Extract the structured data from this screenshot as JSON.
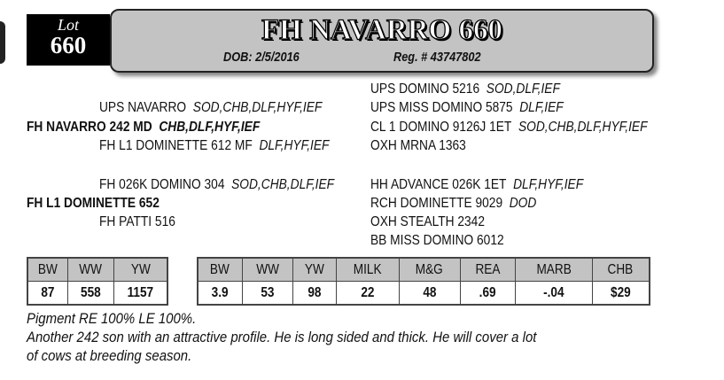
{
  "header": {
    "lot_word": "Lot",
    "lot_number": "660",
    "name": "FH NAVARRO 660",
    "dob": "DOB: 2/5/2016",
    "reg": "Reg. # 43747802"
  },
  "pedigree": {
    "sire": {
      "name": "FH NAVARRO 242 MD",
      "tags": "CHB,DLF,HYF,IEF"
    },
    "sire_sire": {
      "name": "UPS NAVARRO",
      "tags": "SOD,CHB,DLF,HYF,IEF"
    },
    "sire_dam": {
      "name": "FH L1 DOMINETTE 612 MF",
      "tags": "DLF,HYF,IEF"
    },
    "ss_sire": {
      "name": "UPS DOMINO 5216",
      "tags": "SOD,DLF,IEF"
    },
    "ss_dam": {
      "name": "UPS MISS DOMINO 5875",
      "tags": "DLF,IEF"
    },
    "sd_sire": {
      "name": "CL 1 DOMINO 9126J 1ET",
      "tags": "SOD,CHB,DLF,HYF,IEF"
    },
    "sd_dam": {
      "name": "OXH MRNA 1363",
      "tags": ""
    },
    "dam": {
      "name": "FH L1 DOMINETTE 652",
      "tags": ""
    },
    "dam_sire": {
      "name": "FH 026K DOMINO 304",
      "tags": "SOD,CHB,DLF,IEF"
    },
    "dam_dam": {
      "name": "FH PATTI 516",
      "tags": ""
    },
    "ds_sire": {
      "name": "HH ADVANCE 026K 1ET",
      "tags": "DLF,HYF,IEF"
    },
    "ds_dam": {
      "name": "RCH DOMINETTE 9029",
      "tags": "DOD"
    },
    "dd_sire": {
      "name": "OXH STEALTH 2342",
      "tags": ""
    },
    "dd_dam": {
      "name": "BB MISS DOMINO 6012",
      "tags": ""
    }
  },
  "actual_table": {
    "headers": [
      "BW",
      "WW",
      "YW"
    ],
    "values": [
      "87",
      "558",
      "1157"
    ]
  },
  "epd_table": {
    "headers": [
      "BW",
      "WW",
      "YW",
      "MILK",
      "M&G",
      "REA",
      "MARB",
      "CHB"
    ],
    "values": [
      "3.9",
      "53",
      "98",
      "22",
      "48",
      ".69",
      "-.04",
      "$29"
    ]
  },
  "notes": [
    "Pigment RE 100%  LE 100%.",
    "Another 242 son with an attractive profile. He is long sided and thick. He will cover a lot",
    "of cows at breeding season."
  ]
}
